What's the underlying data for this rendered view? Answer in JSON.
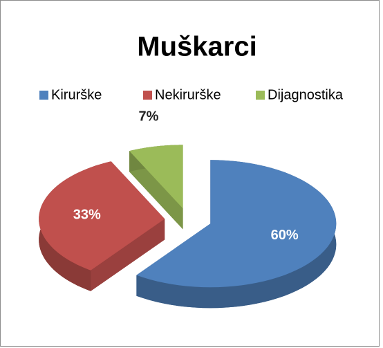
{
  "chart_data": {
    "type": "pie",
    "title": "Muškarci",
    "categories": [
      "Kirurške",
      "Nekirurške",
      "Dijagnostika"
    ],
    "values": [
      60,
      33,
      7
    ],
    "value_labels": [
      "60%",
      "33%",
      "7%"
    ],
    "colors": [
      "#4f81bd",
      "#c0504d",
      "#9bbb59"
    ],
    "legend": "top"
  }
}
